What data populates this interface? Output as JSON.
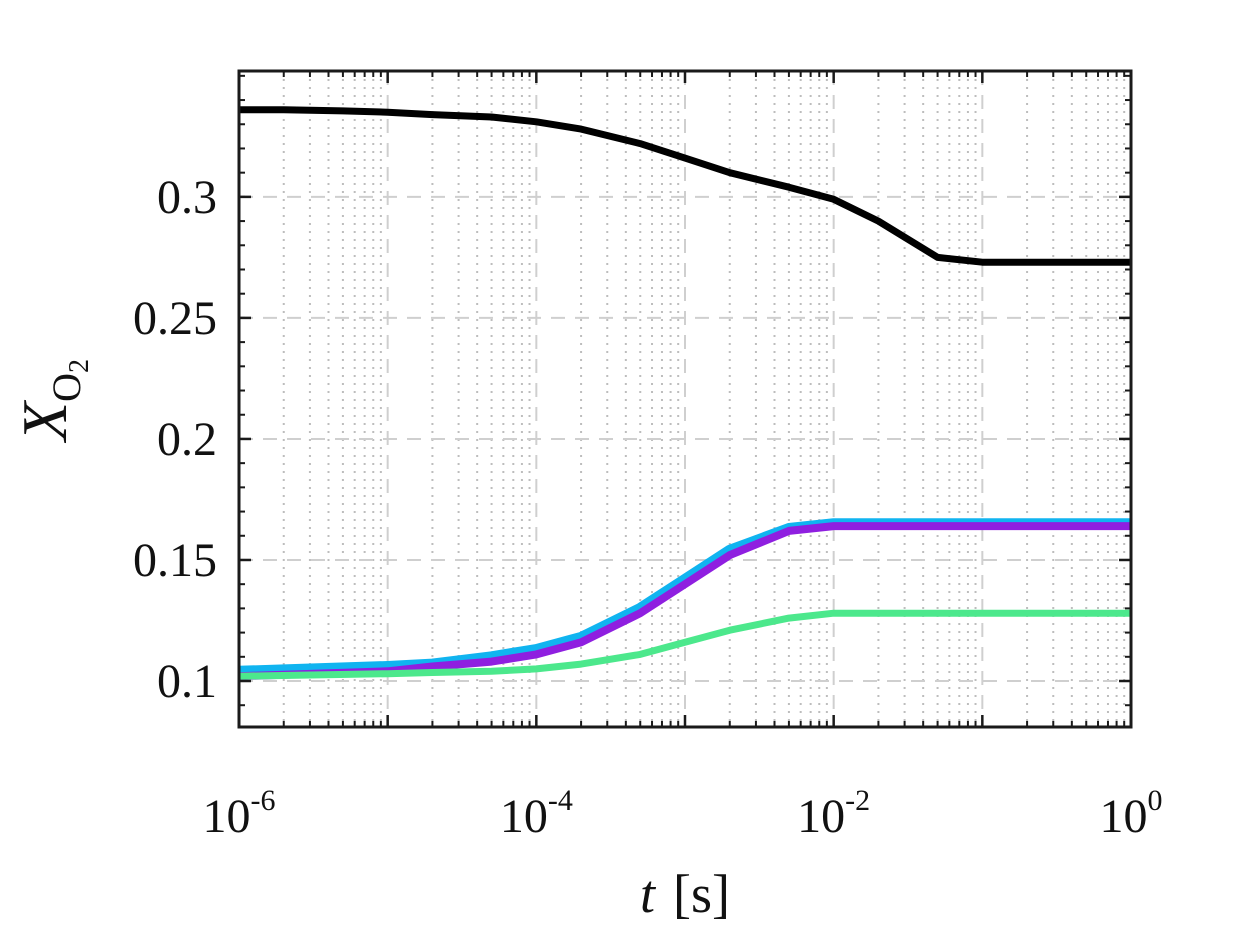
{
  "chart_data": {
    "type": "line",
    "title": "",
    "xlabel": {
      "symbol": "t",
      "unit": "[s]"
    },
    "ylabel": {
      "symbol": "X",
      "subscript": "O",
      "subscript2": "2"
    },
    "x_scale": "log",
    "xlim": [
      1e-06,
      1
    ],
    "ylim": [
      0.081,
      0.352
    ],
    "x_ticks": [
      {
        "base": "10",
        "exp": "-6",
        "value": 1e-06
      },
      {
        "base": "10",
        "exp": "-4",
        "value": 0.0001
      },
      {
        "base": "10",
        "exp": "-2",
        "value": 0.01
      },
      {
        "base": "10",
        "exp": "0",
        "value": 1
      }
    ],
    "y_ticks": [
      {
        "label": "0.1",
        "value": 0.1
      },
      {
        "label": "0.15",
        "value": 0.15
      },
      {
        "label": "0.2",
        "value": 0.2
      },
      {
        "label": "0.25",
        "value": 0.25
      },
      {
        "label": "0.3",
        "value": 0.3
      }
    ],
    "grid": {
      "major": true,
      "minor": true
    },
    "legend": "none",
    "series": [
      {
        "color": "#000000",
        "x": [
          1e-06,
          2e-06,
          5e-06,
          1e-05,
          2e-05,
          5e-05,
          0.0001,
          0.0002,
          0.0005,
          0.001,
          0.002,
          0.005,
          0.01,
          0.02,
          0.05,
          0.1,
          0.2,
          0.5,
          1
        ],
        "y": [
          0.336,
          0.336,
          0.3355,
          0.335,
          0.334,
          0.333,
          0.331,
          0.328,
          0.322,
          0.316,
          0.31,
          0.304,
          0.299,
          0.29,
          0.275,
          0.273,
          0.273,
          0.273,
          0.273
        ]
      },
      {
        "color": "#10b4f0",
        "x": [
          1e-06,
          1e-05,
          2e-05,
          5e-05,
          0.0001,
          0.0002,
          0.0005,
          0.001,
          0.002,
          0.005,
          0.01,
          0.02,
          0.05,
          0.1,
          0.2,
          0.5,
          1
        ],
        "y": [
          0.104,
          0.106,
          0.107,
          0.11,
          0.113,
          0.118,
          0.13,
          0.142,
          0.154,
          0.163,
          0.165,
          0.165,
          0.165,
          0.165,
          0.165,
          0.165,
          0.165
        ]
      },
      {
        "color": "#8f1fe0",
        "x": [
          1e-06,
          1e-05,
          2e-05,
          5e-05,
          0.0001,
          0.0002,
          0.0005,
          0.001,
          0.002,
          0.005,
          0.01,
          0.02,
          0.05,
          0.1,
          0.2,
          0.5,
          1
        ],
        "y": [
          0.102,
          0.104,
          0.106,
          0.108,
          0.111,
          0.116,
          0.128,
          0.14,
          0.152,
          0.162,
          0.164,
          0.164,
          0.164,
          0.164,
          0.164,
          0.164,
          0.164
        ]
      },
      {
        "color": "#4ce88c",
        "x": [
          1e-06,
          1e-05,
          2e-05,
          5e-05,
          0.0001,
          0.0002,
          0.0005,
          0.001,
          0.002,
          0.005,
          0.01,
          0.02,
          0.05,
          0.1,
          0.2,
          0.5,
          1
        ],
        "y": [
          0.102,
          0.103,
          0.1035,
          0.104,
          0.105,
          0.107,
          0.111,
          0.116,
          0.121,
          0.126,
          0.128,
          0.128,
          0.128,
          0.128,
          0.128,
          0.128,
          0.128
        ]
      }
    ]
  }
}
